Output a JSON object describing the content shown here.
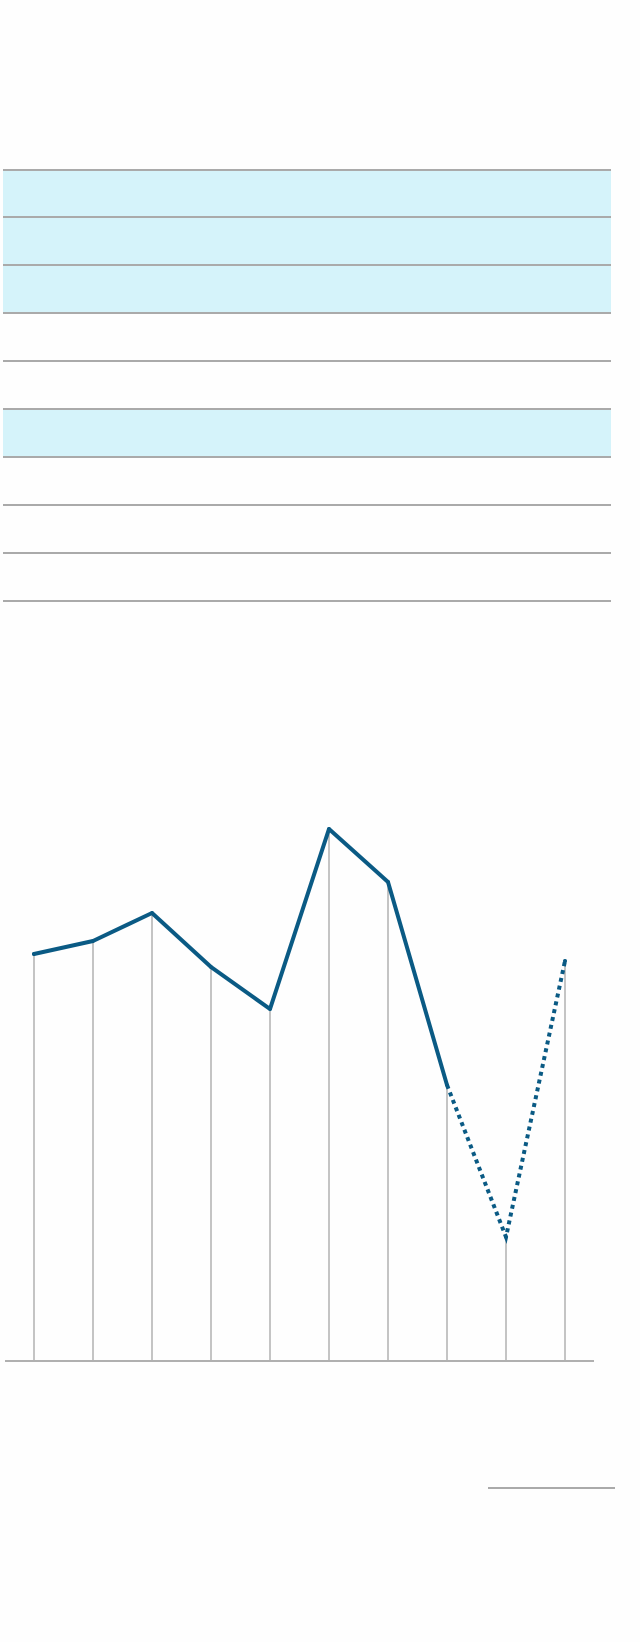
{
  "table": {
    "rows": [
      {
        "highlighted": true
      },
      {
        "highlighted": true
      },
      {
        "highlighted": true
      },
      {
        "highlighted": false
      },
      {
        "highlighted": false
      },
      {
        "highlighted": true
      },
      {
        "highlighted": false
      },
      {
        "highlighted": false
      },
      {
        "highlighted": false
      }
    ],
    "highlight_color": "#d5f3fa",
    "rule_color": "#aaaaaa"
  },
  "chart_data": {
    "type": "line",
    "title": "",
    "xlabel": "",
    "ylabel": "",
    "x": [
      1,
      2,
      3,
      4,
      5,
      6,
      7,
      8,
      9,
      10
    ],
    "series": [
      {
        "values": [
          407,
          420,
          448,
          394,
          352,
          532,
          479,
          276,
          124,
          400
        ],
        "solid_until_index": 7,
        "remaining_style": "dotted"
      }
    ],
    "ylim": [
      0,
      560
    ],
    "drop_lines": true,
    "grid": false,
    "line_color": "#0a5a84",
    "drop_line_color": "#b0b0b0"
  }
}
